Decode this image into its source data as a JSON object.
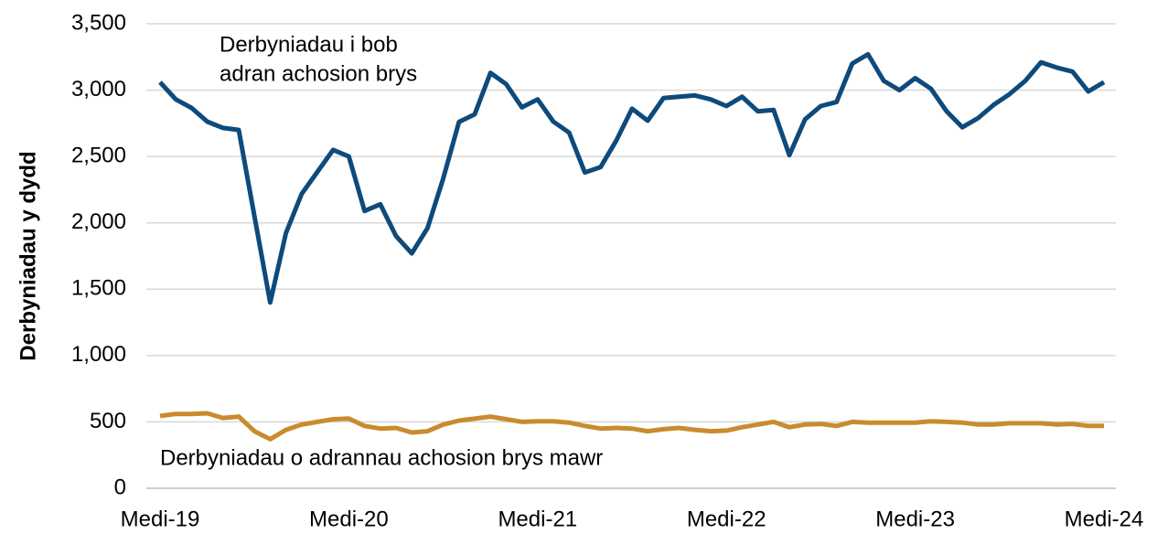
{
  "chart_data": {
    "type": "line",
    "y_label": "Derbyniadau y dydd",
    "categories": [
      "Medi-19",
      null,
      null,
      null,
      null,
      null,
      null,
      null,
      null,
      null,
      null,
      null,
      "Medi-20",
      null,
      null,
      null,
      null,
      null,
      null,
      null,
      null,
      null,
      null,
      null,
      "Medi-21",
      null,
      null,
      null,
      null,
      null,
      null,
      null,
      null,
      null,
      null,
      null,
      "Medi-22",
      null,
      null,
      null,
      null,
      null,
      null,
      null,
      null,
      null,
      null,
      null,
      "Medi-23",
      null,
      null,
      null,
      null,
      null,
      null,
      null,
      null,
      null,
      null,
      null,
      "Medi-24"
    ],
    "series": [
      {
        "name": [
          "Derbyniadau i bob",
          "adran achosion brys"
        ],
        "color": "#0e4a7b",
        "values": [
          3060,
          2930,
          2866,
          2763,
          2715,
          2700,
          2050,
          1400,
          1922,
          2218,
          2384,
          2550,
          2500,
          2090,
          2140,
          1900,
          1770,
          1960,
          2335,
          2760,
          2818,
          3130,
          3045,
          2870,
          2930,
          2763,
          2680,
          2380,
          2420,
          2620,
          2860,
          2770,
          2940,
          2950,
          2960,
          2930,
          2880,
          2950,
          2840,
          2850,
          2510,
          2780,
          2880,
          2910,
          3200,
          3270,
          3070,
          3000,
          3090,
          3010,
          2840,
          2720,
          2790,
          2890,
          2970,
          3070,
          3210,
          3170,
          3140,
          2990,
          3060
        ]
      },
      {
        "name": "Derbyniadau o adrannau achosion brys mawr",
        "color": "#c98b2e",
        "values": [
          545,
          560,
          560,
          565,
          530,
          540,
          430,
          370,
          440,
          480,
          500,
          520,
          525,
          470,
          450,
          455,
          420,
          430,
          480,
          510,
          525,
          540,
          520,
          500,
          505,
          505,
          495,
          470,
          450,
          455,
          450,
          430,
          445,
          455,
          440,
          430,
          435,
          460,
          480,
          500,
          460,
          480,
          485,
          470,
          500,
          495,
          495,
          495,
          495,
          505,
          500,
          495,
          480,
          480,
          490,
          490,
          490,
          480,
          485,
          470,
          470
        ]
      }
    ],
    "ylim": [
      0,
      3500
    ],
    "yticks": [
      0,
      500,
      {
        "value": 1000,
        "label": "1,000"
      },
      {
        "value": 1500,
        "label": "1,500"
      },
      {
        "value": 2000,
        "label": "2,000"
      },
      {
        "value": 2500,
        "label": "2,500"
      },
      {
        "value": 3000,
        "label": "3,000"
      },
      {
        "value": 3500,
        "label": "3,500"
      }
    ],
    "grid": true
  }
}
